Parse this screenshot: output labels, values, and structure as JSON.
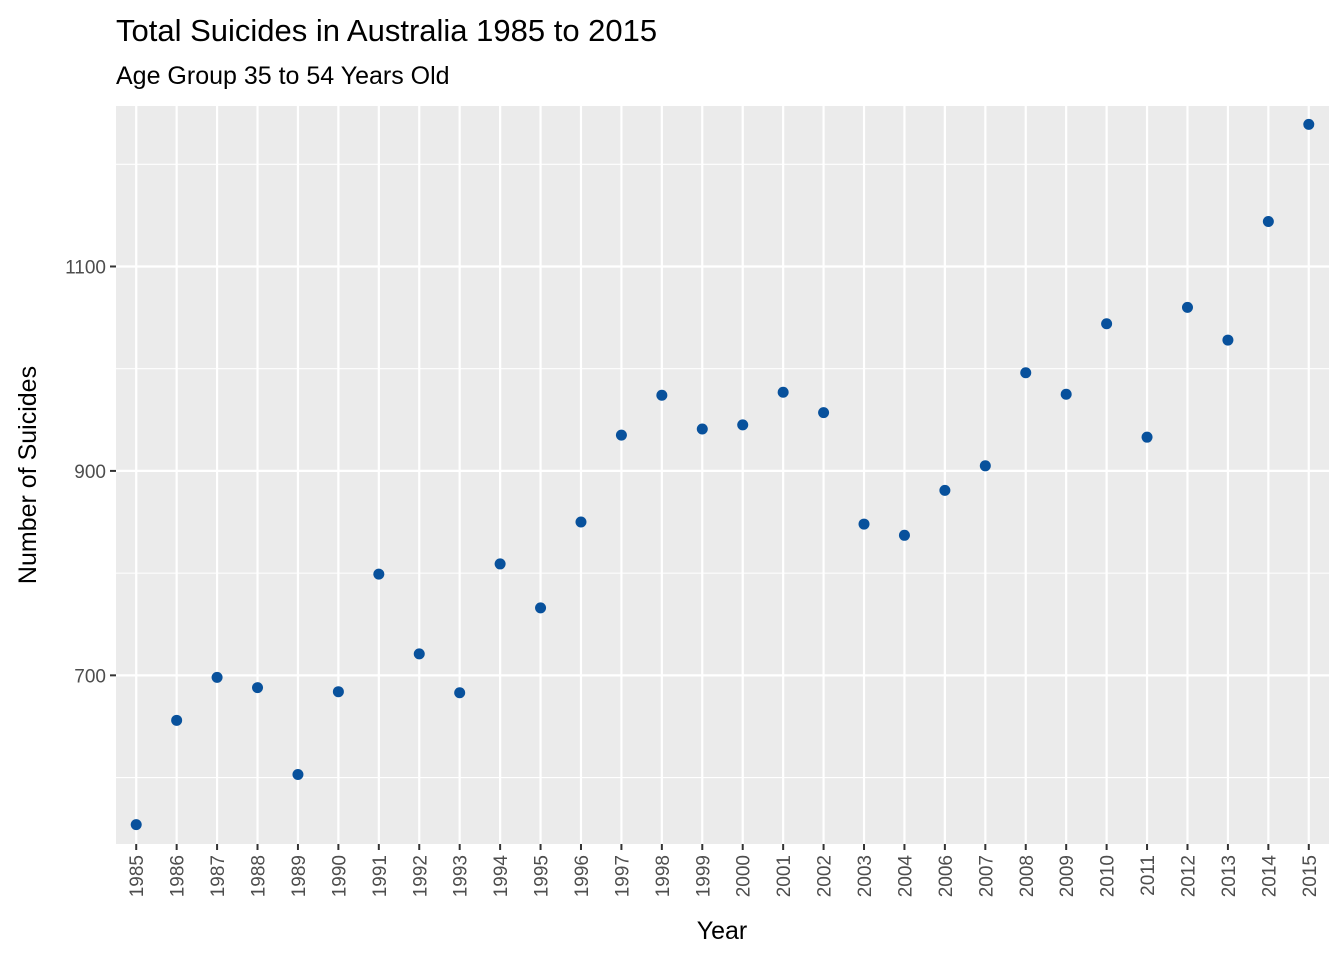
{
  "chart_data": {
    "type": "scatter",
    "title": "Total Suicides in Australia 1985 to 2015",
    "subtitle": "Age Group 35 to 54 Years Old",
    "xlabel": "Year",
    "ylabel": "Number of Suicides",
    "x": [
      "1985",
      "1986",
      "1987",
      "1988",
      "1989",
      "1990",
      "1991",
      "1992",
      "1993",
      "1994",
      "1995",
      "1996",
      "1997",
      "1998",
      "1999",
      "2000",
      "2001",
      "2002",
      "2003",
      "2004",
      "2006",
      "2007",
      "2008",
      "2009",
      "2010",
      "2011",
      "2012",
      "2013",
      "2014",
      "2015"
    ],
    "values": [
      554,
      656,
      698,
      688,
      603,
      684,
      799,
      721,
      683,
      809,
      766,
      850,
      935,
      974,
      941,
      945,
      977,
      957,
      848,
      837,
      881,
      905,
      996,
      975,
      1044,
      933,
      1060,
      1028,
      1144,
      1239
    ],
    "y_ticks": [
      700,
      900,
      1100
    ],
    "ylim": [
      535,
      1257
    ],
    "grid": true,
    "point_color": "#08519c",
    "panel_background": "#ebebeb",
    "grid_color": "#ffffff"
  }
}
